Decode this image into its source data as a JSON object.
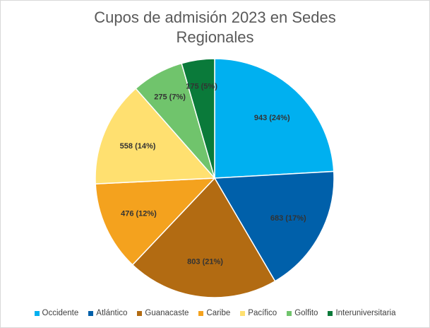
{
  "chart_data": {
    "type": "pie",
    "title_lines": [
      "Cupos de admisión 2023 en Sedes",
      "Regionales"
    ],
    "legend_position": "bottom",
    "slices": [
      {
        "name": "Occidente",
        "value": 943,
        "label": "943 (24%)",
        "color": "#00b0f0"
      },
      {
        "name": "Atlántico",
        "value": 683,
        "label": "683 (17%)",
        "color": "#0060aa"
      },
      {
        "name": "Guanacaste",
        "value": 803,
        "label": "803 (21%)",
        "color": "#b26b12"
      },
      {
        "name": "Caribe",
        "value": 476,
        "label": "476 (12%)",
        "color": "#f4a21e"
      },
      {
        "name": "Pacífico",
        "value": 558,
        "label": "558 (14%)",
        "color": "#ffe070"
      },
      {
        "name": "Golfito",
        "value": 275,
        "label": "275 (7%)",
        "color": "#70c46c"
      },
      {
        "name": "Interuniversitaria",
        "value": 175,
        "label": "175 (5%)",
        "color": "#0a7a3a"
      }
    ]
  }
}
